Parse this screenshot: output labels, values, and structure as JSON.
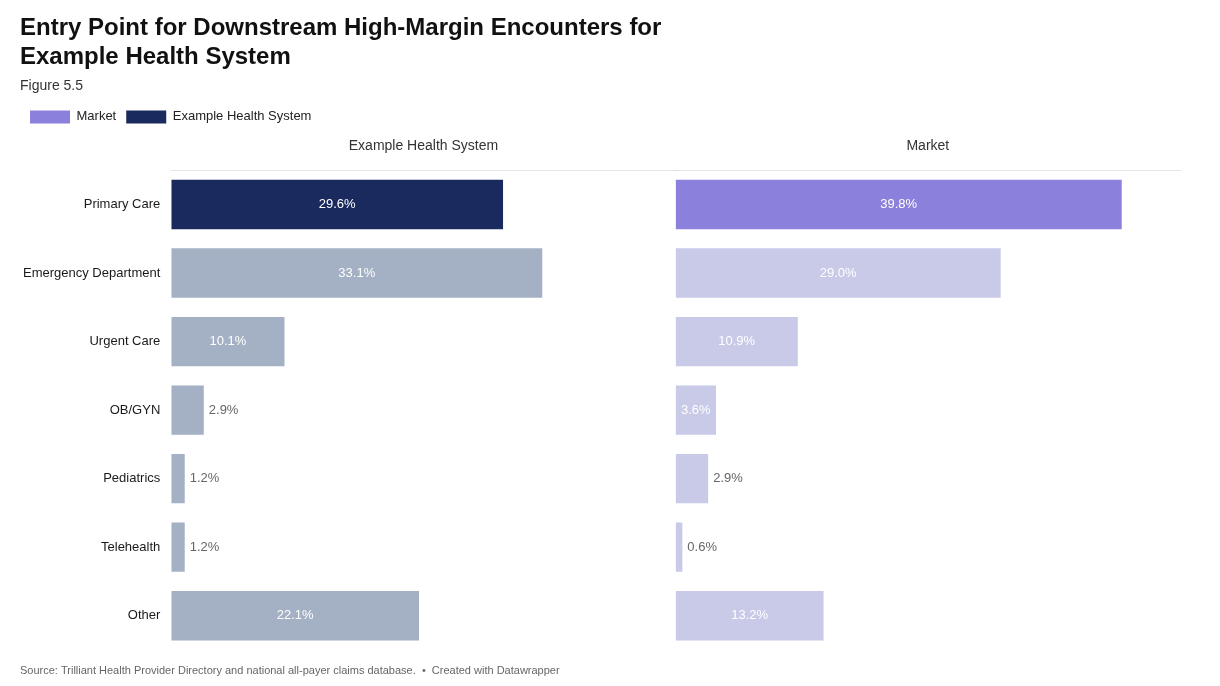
{
  "chart_data": {
    "type": "bar",
    "orientation": "horizontal",
    "title": [
      "Entry Point for Downstream High-Margin Encounters for",
      "Example Health System"
    ],
    "subtitle": "Figure 5.5",
    "source": "Source: Trilliant Health Provider Directory and national all-payer claims database.  •  Created with Datawrapper",
    "categories": [
      "Primary Care",
      "Emergency Department",
      "Urgent Care",
      "OB/GYN",
      "Pediatrics",
      "Telehealth",
      "Other"
    ],
    "series": [
      {
        "name": "Market",
        "colors": [
          "#8B80DC",
          "#C8CAE8",
          "#C8CAE8",
          "#C8CAE8",
          "#C8CAE8",
          "#C8CAE8",
          "#C8CAE8"
        ],
        "values": [
          39.8,
          29.0,
          10.9,
          3.6,
          2.9,
          0.6,
          13.2
        ],
        "value_labels": [
          "39.8%",
          "29.0%",
          "10.9%",
          "3.6%",
          "2.9%",
          "0.6%",
          "13.2%"
        ]
      },
      {
        "name": "Example Health System",
        "colors": [
          "#1B2A5E",
          "#A4B0C4",
          "#A4B0C4",
          "#A4B0C4",
          "#A4B0C4",
          "#A4B0C4",
          "#A4B0C4"
        ],
        "values": [
          29.6,
          33.1,
          10.1,
          2.9,
          1.2,
          1.2,
          22.1
        ],
        "value_labels": [
          "29.6%",
          "33.1%",
          "10.1%",
          "2.9%",
          "1.2%",
          "1.2%",
          "22.1%"
        ]
      }
    ],
    "xlabel": [
      "Market",
      "Example Health System"
    ],
    "xlim": [
      0,
      45
    ],
    "grid": false,
    "legend": "top",
    "data_labels": true,
    "tick_labels": "y"
  }
}
